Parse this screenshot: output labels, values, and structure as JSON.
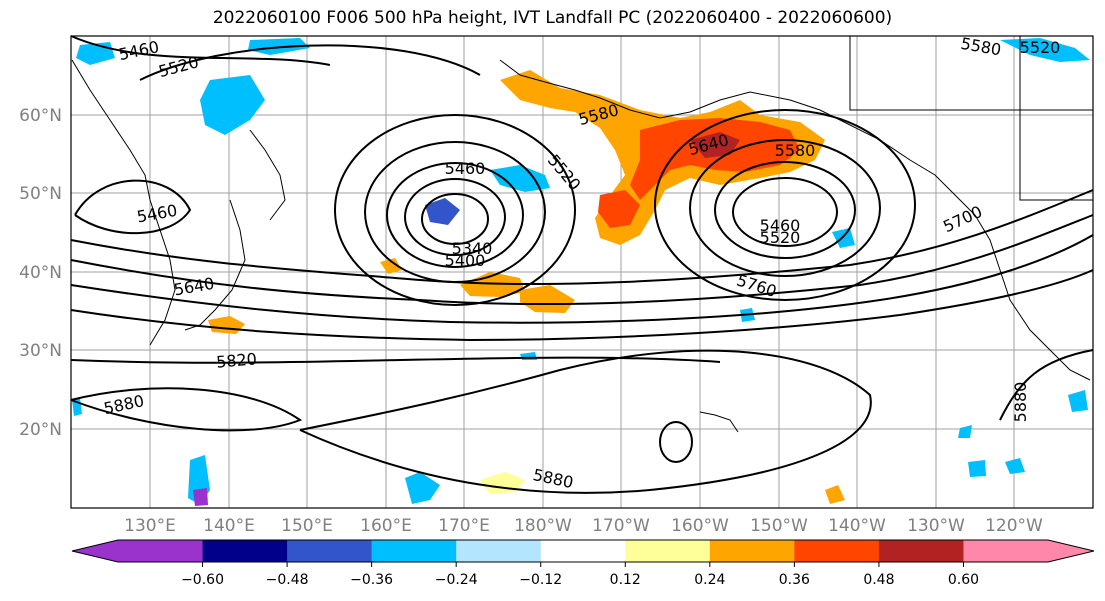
{
  "title": "2022060100 F006 500 hPa height, IVT Landfall PC (2022060400 - 2022060600)",
  "map": {
    "lat_labels": [
      "60°N",
      "50°N",
      "40°N",
      "30°N",
      "20°N"
    ],
    "lon_labels": [
      "130°E",
      "140°E",
      "150°E",
      "160°E",
      "170°E",
      "180°W",
      "170°W",
      "160°W",
      "150°W",
      "140°W",
      "130°W",
      "120°W"
    ],
    "contour_labels": [
      "5460",
      "5520",
      "5580",
      "5520",
      "5460",
      "5580",
      "5520",
      "5340",
      "5400",
      "5460",
      "5640",
      "5580",
      "5460",
      "5520",
      "5700",
      "5640",
      "5760",
      "5820",
      "5880",
      "5880",
      "5880"
    ]
  },
  "colorbar": {
    "colors": [
      "#9933cc",
      "#00008b",
      "#3355cc",
      "#00bfff",
      "#b3e5ff",
      "#ffffff",
      "#ffff99",
      "#ffa500",
      "#ff4500",
      "#b22222",
      "#ff88aa",
      "#ff88aa"
    ],
    "tick_labels": [
      "−0.60",
      "−0.48",
      "−0.36",
      "−0.24",
      "−0.12",
      "0.12",
      "0.24",
      "0.36",
      "0.48",
      "0.60"
    ]
  }
}
